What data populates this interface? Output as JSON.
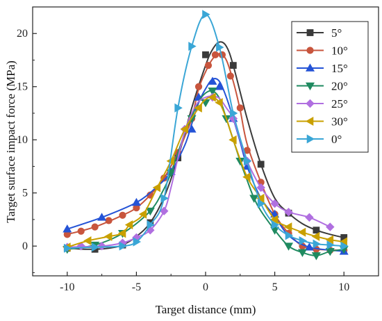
{
  "chart_data": {
    "type": "line",
    "xlabel": "Target distance (mm)",
    "ylabel": "Target surface impact force (MPa)",
    "xlim": [
      -12.5,
      12.5
    ],
    "ylim": [
      -2.8,
      22.5
    ],
    "xticks": [
      -10,
      -5,
      0,
      5,
      10
    ],
    "yticks": [
      0,
      5,
      10,
      15,
      20
    ],
    "legend_position": "top-right",
    "series": [
      {
        "name": "5°",
        "color": "#3a3a3a",
        "marker": "square",
        "points": [
          [
            -10,
            -0.2
          ],
          [
            -8.0,
            -0.3
          ],
          [
            -6.0,
            0.1
          ],
          [
            -4.0,
            2.2
          ],
          [
            -2.0,
            8.3
          ],
          [
            0,
            18.0
          ],
          [
            2.0,
            17.0
          ],
          [
            4.0,
            7.7
          ],
          [
            6.0,
            3.1
          ],
          [
            8.0,
            1.5
          ],
          [
            10,
            0.8
          ]
        ],
        "curve": [
          [
            -10,
            -0.2
          ],
          [
            -8.5,
            -0.3
          ],
          [
            -7,
            -0.2
          ],
          [
            -6,
            0.1
          ],
          [
            -5,
            0.9
          ],
          [
            -4,
            2.2
          ],
          [
            -3,
            4.6
          ],
          [
            -2,
            8.3
          ],
          [
            -1,
            13.0
          ],
          [
            0,
            17.0
          ],
          [
            0.5,
            18.5
          ],
          [
            1,
            19.2
          ],
          [
            1.5,
            18.8
          ],
          [
            2,
            17.0
          ],
          [
            3,
            12.0
          ],
          [
            4,
            7.7
          ],
          [
            5,
            4.5
          ],
          [
            6,
            3.1
          ],
          [
            7,
            2.1
          ],
          [
            8,
            1.5
          ],
          [
            9,
            1.1
          ],
          [
            10,
            0.8
          ]
        ]
      },
      {
        "name": "10°",
        "color": "#c8553d",
        "marker": "circle",
        "points": [
          [
            -10,
            1.1
          ],
          [
            -9.0,
            1.4
          ],
          [
            -8.0,
            1.8
          ],
          [
            -7.0,
            2.4
          ],
          [
            -6.0,
            2.9
          ],
          [
            -5.0,
            3.6
          ],
          [
            -4.0,
            4.8
          ],
          [
            -3.0,
            6.4
          ],
          [
            -2.0,
            8.8
          ],
          [
            -1.0,
            12.0
          ],
          [
            -0.5,
            15.0
          ],
          [
            0.2,
            17.0
          ],
          [
            0.7,
            18.0
          ],
          [
            1.2,
            18.0
          ],
          [
            1.8,
            16.0
          ],
          [
            2.5,
            13.0
          ],
          [
            3.0,
            9.0
          ],
          [
            4.0,
            6.0
          ],
          [
            5.0,
            3.0
          ],
          [
            6.0,
            1.2
          ],
          [
            7.0,
            0.0
          ],
          [
            8.0,
            -0.3
          ],
          [
            9.0,
            -0.4
          ],
          [
            10,
            -0.4
          ]
        ],
        "curve": [
          [
            -10,
            1.1
          ],
          [
            -8,
            1.8
          ],
          [
            -6,
            2.9
          ],
          [
            -5,
            3.6
          ],
          [
            -4,
            4.8
          ],
          [
            -3,
            6.4
          ],
          [
            -2,
            8.8
          ],
          [
            -1.5,
            10.3
          ],
          [
            -1,
            12.0
          ],
          [
            -0.5,
            14.8
          ],
          [
            0,
            16.4
          ],
          [
            0.5,
            17.6
          ],
          [
            1,
            18.1
          ],
          [
            1.5,
            17.5
          ],
          [
            2,
            15.5
          ],
          [
            2.5,
            12.8
          ],
          [
            3,
            9.6
          ],
          [
            4,
            6.0
          ],
          [
            5,
            3.0
          ],
          [
            6,
            1.2
          ],
          [
            7,
            0.0
          ],
          [
            8,
            -0.3
          ],
          [
            10,
            -0.4
          ]
        ]
      },
      {
        "name": "15°",
        "color": "#2453d6",
        "marker": "triangle-up",
        "points": [
          [
            -10,
            1.6
          ],
          [
            -7.5,
            2.7
          ],
          [
            -5.0,
            4.1
          ],
          [
            -2.5,
            7.0
          ],
          [
            -1.0,
            11.0
          ],
          [
            -0.5,
            14.0
          ],
          [
            0.5,
            15.5
          ],
          [
            1.0,
            15.0
          ],
          [
            2.0,
            12.0
          ],
          [
            3.0,
            7.5
          ],
          [
            5.0,
            3.0
          ],
          [
            7.5,
            -0.1
          ],
          [
            10,
            -0.5
          ]
        ],
        "curve": [
          [
            -10,
            1.6
          ],
          [
            -7.5,
            2.7
          ],
          [
            -5,
            4.1
          ],
          [
            -3.5,
            5.6
          ],
          [
            -2.5,
            7.0
          ],
          [
            -1.5,
            9.5
          ],
          [
            -1,
            11.5
          ],
          [
            -0.5,
            13.5
          ],
          [
            0,
            14.8
          ],
          [
            0.5,
            15.7
          ],
          [
            1,
            15.5
          ],
          [
            1.5,
            14.0
          ],
          [
            2,
            12.0
          ],
          [
            2.5,
            9.8
          ],
          [
            3,
            7.5
          ],
          [
            4,
            4.5
          ],
          [
            5,
            2.8
          ],
          [
            6,
            1.0
          ],
          [
            7.5,
            -0.1
          ],
          [
            10,
            -0.5
          ]
        ]
      },
      {
        "name": "20°",
        "color": "#1f8a60",
        "marker": "triangle-down",
        "points": [
          [
            -10,
            -0.3
          ],
          [
            -8.0,
            0.1
          ],
          [
            -6.0,
            1.2
          ],
          [
            -4.0,
            3.3
          ],
          [
            -2.5,
            6.9
          ],
          [
            -1.0,
            12.0
          ],
          [
            0,
            13.5
          ],
          [
            0.5,
            14.6
          ],
          [
            1.5,
            12.0
          ],
          [
            2.5,
            8.0
          ],
          [
            3.5,
            4.5
          ],
          [
            5.0,
            1.5
          ],
          [
            6.0,
            0.0
          ],
          [
            7.0,
            -0.6
          ],
          [
            8.0,
            -0.9
          ],
          [
            9.0,
            -0.5
          ],
          [
            10,
            -0.3
          ]
        ],
        "curve": [
          [
            -10,
            -0.3
          ],
          [
            -8,
            0.1
          ],
          [
            -6,
            1.2
          ],
          [
            -4,
            3.3
          ],
          [
            -3,
            5.4
          ],
          [
            -2.5,
            6.9
          ],
          [
            -2,
            8.8
          ],
          [
            -1.5,
            10.6
          ],
          [
            -1,
            12.2
          ],
          [
            -0.5,
            13.6
          ],
          [
            0,
            14.4
          ],
          [
            0.5,
            14.6
          ],
          [
            1,
            13.9
          ],
          [
            1.5,
            12.0
          ],
          [
            2,
            10.0
          ],
          [
            2.5,
            8.0
          ],
          [
            3,
            6.2
          ],
          [
            3.5,
            4.5
          ],
          [
            4,
            3.3
          ],
          [
            5,
            1.5
          ],
          [
            6,
            0.0
          ],
          [
            7,
            -0.6
          ],
          [
            8,
            -0.9
          ],
          [
            9,
            -0.5
          ],
          [
            10,
            -0.3
          ]
        ]
      },
      {
        "name": "25°",
        "color": "#b06fe0",
        "marker": "diamond",
        "points": [
          [
            -10,
            -0.1
          ],
          [
            -9.0,
            0.0
          ],
          [
            -7.5,
            0.0
          ],
          [
            -6.0,
            0.3
          ],
          [
            -5.0,
            0.8
          ],
          [
            -4.0,
            1.5
          ],
          [
            -3.0,
            3.3
          ],
          [
            -1.5,
            11.0
          ],
          [
            0.5,
            14.0
          ],
          [
            2.0,
            12.0
          ],
          [
            3.0,
            8.0
          ],
          [
            4.0,
            5.5
          ],
          [
            5.0,
            4.0
          ],
          [
            6.0,
            3.2
          ],
          [
            7.5,
            2.7
          ],
          [
            9.0,
            1.8
          ]
        ],
        "curve": [
          [
            -10,
            -0.1
          ],
          [
            -7.5,
            0.0
          ],
          [
            -6,
            0.3
          ],
          [
            -5,
            0.8
          ],
          [
            -4,
            1.5
          ],
          [
            -3,
            3.3
          ],
          [
            -2.5,
            5.5
          ],
          [
            -2,
            8.3
          ],
          [
            -1.5,
            10.8
          ],
          [
            -1,
            12.5
          ],
          [
            -0.5,
            13.6
          ],
          [
            0,
            14.0
          ],
          [
            0.5,
            14.1
          ],
          [
            1,
            13.9
          ],
          [
            1.5,
            13.0
          ],
          [
            2,
            12.0
          ],
          [
            2.5,
            10.0
          ],
          [
            3,
            8.0
          ],
          [
            4,
            5.5
          ],
          [
            5,
            4.0
          ],
          [
            6,
            3.2
          ],
          [
            7.5,
            2.7
          ],
          [
            9,
            1.8
          ]
        ]
      },
      {
        "name": "30°",
        "color": "#c9a000",
        "marker": "triangle-left",
        "points": [
          [
            -10,
            -0.1
          ],
          [
            -8.5,
            0.5
          ],
          [
            -7.0,
            0.9
          ],
          [
            -6.0,
            1.2
          ],
          [
            -5.5,
            2.0
          ],
          [
            -4.5,
            3.0
          ],
          [
            -3.5,
            5.5
          ],
          [
            -2.5,
            8.0
          ],
          [
            -1.5,
            11.0
          ],
          [
            -0.5,
            13.0
          ],
          [
            0.5,
            14.0
          ],
          [
            1.0,
            13.5
          ],
          [
            2.0,
            10.0
          ],
          [
            3.0,
            6.5
          ],
          [
            4.0,
            4.5
          ],
          [
            5.0,
            2.5
          ],
          [
            6.0,
            1.8
          ],
          [
            7.0,
            1.3
          ],
          [
            8.0,
            0.9
          ],
          [
            9.0,
            0.6
          ],
          [
            10,
            0.4
          ]
        ],
        "curve": [
          [
            -10,
            -0.1
          ],
          [
            -8.5,
            0.5
          ],
          [
            -7,
            0.9
          ],
          [
            -6,
            1.2
          ],
          [
            -5.5,
            2.0
          ],
          [
            -4.5,
            3.0
          ],
          [
            -3.5,
            5.5
          ],
          [
            -2.5,
            8.0
          ],
          [
            -1.5,
            11.0
          ],
          [
            -0.5,
            13.0
          ],
          [
            0,
            13.8
          ],
          [
            0.5,
            14.0
          ],
          [
            1,
            13.5
          ],
          [
            1.5,
            12.0
          ],
          [
            2,
            10.0
          ],
          [
            3,
            6.5
          ],
          [
            4,
            4.5
          ],
          [
            5,
            2.5
          ],
          [
            6,
            1.8
          ],
          [
            7,
            1.3
          ],
          [
            8,
            0.9
          ],
          [
            9,
            0.6
          ],
          [
            10,
            0.4
          ]
        ]
      },
      {
        "name": "0°",
        "color": "#3aa6d6",
        "marker": "triangle-right",
        "points": [
          [
            -10,
            -0.2
          ],
          [
            -8.0,
            -0.1
          ],
          [
            -6.0,
            0.0
          ],
          [
            -5.0,
            0.4
          ],
          [
            -4.0,
            2.0
          ],
          [
            -3.0,
            4.5
          ],
          [
            -2.0,
            13.0
          ],
          [
            -1.0,
            18.8
          ],
          [
            0,
            21.8
          ],
          [
            1.0,
            18.7
          ],
          [
            2.0,
            12.5
          ],
          [
            3.0,
            8.0
          ],
          [
            4.0,
            4.0
          ],
          [
            5.0,
            2.0
          ],
          [
            6.0,
            1.0
          ],
          [
            7.0,
            0.5
          ],
          [
            8.0,
            0.2
          ],
          [
            9.0,
            0.1
          ],
          [
            10,
            0.0
          ]
        ],
        "curve": [
          [
            -10,
            -0.2
          ],
          [
            -8,
            -0.1
          ],
          [
            -6,
            0.0
          ],
          [
            -5,
            0.4
          ],
          [
            -4,
            2.0
          ],
          [
            -3,
            4.5
          ],
          [
            -2,
            13.0
          ],
          [
            -1,
            18.8
          ],
          [
            0,
            21.8
          ],
          [
            1,
            18.7
          ],
          [
            2,
            12.5
          ],
          [
            3,
            8.0
          ],
          [
            4,
            4.0
          ],
          [
            5,
            2.0
          ],
          [
            6,
            1.0
          ],
          [
            7,
            0.5
          ],
          [
            8,
            0.2
          ],
          [
            9,
            0.1
          ],
          [
            10,
            0.0
          ]
        ]
      }
    ]
  }
}
